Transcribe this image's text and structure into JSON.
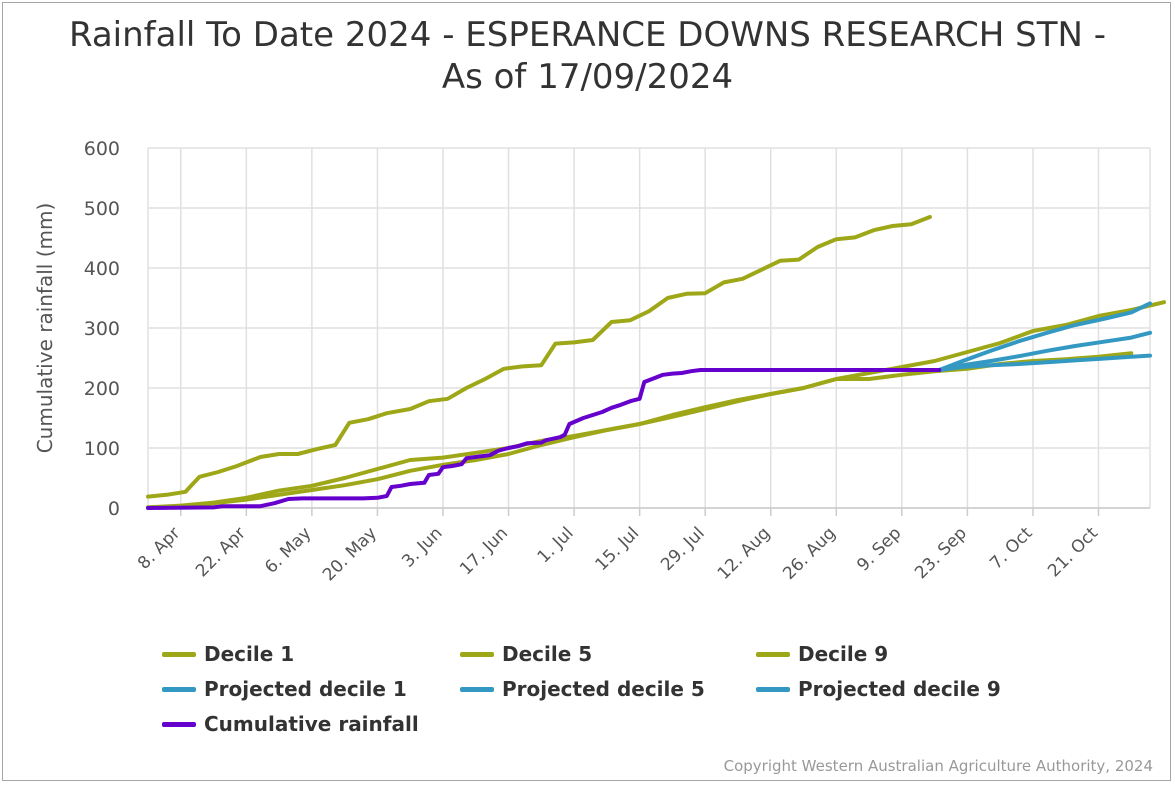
{
  "chart_data": {
    "type": "line",
    "title_line1": "Rainfall To Date 2024 - ESPERANCE DOWNS RESEARCH STN -",
    "title_line2": "As of 17/09/2024",
    "ylabel": "Cumulative rainfall (mm)",
    "xlabel": "",
    "ylim": [
      0,
      600
    ],
    "yticks": [
      "0",
      "100",
      "200",
      "300",
      "400",
      "500",
      "600"
    ],
    "x_start": "1 Apr",
    "x_end": "31 Oct",
    "grid": true,
    "legend_position": "bottom",
    "xticks": [
      {
        "label": "8. Apr",
        "day": 7
      },
      {
        "label": "22. Apr",
        "day": 21
      },
      {
        "label": "6. May",
        "day": 35
      },
      {
        "label": "20. May",
        "day": 49
      },
      {
        "label": "3. Jun",
        "day": 63
      },
      {
        "label": "17. Jun",
        "day": 77
      },
      {
        "label": "1. Jul",
        "day": 91
      },
      {
        "label": "15. Jul",
        "day": 105
      },
      {
        "label": "29. Jul",
        "day": 119
      },
      {
        "label": "12. Aug",
        "day": 133
      },
      {
        "label": "26. Aug",
        "day": 147
      },
      {
        "label": "9. Sep",
        "day": 161
      },
      {
        "label": "23. Sep",
        "day": 175
      },
      {
        "label": "7. Oct",
        "day": 189
      },
      {
        "label": "21. Oct",
        "day": 203
      }
    ],
    "series": [
      {
        "name": "Decile 1",
        "color": "#9ea718",
        "step": false,
        "points": [
          [
            0,
            1
          ],
          [
            7,
            3
          ],
          [
            14,
            8
          ],
          [
            21,
            14
          ],
          [
            28,
            22
          ],
          [
            35,
            30
          ],
          [
            42,
            38
          ],
          [
            49,
            48
          ],
          [
            56,
            62
          ],
          [
            63,
            72
          ],
          [
            70,
            80
          ],
          [
            77,
            90
          ],
          [
            84,
            105
          ],
          [
            91,
            118
          ],
          [
            98,
            130
          ],
          [
            105,
            140
          ],
          [
            112,
            152
          ],
          [
            119,
            165
          ],
          [
            126,
            178
          ],
          [
            133,
            190
          ],
          [
            140,
            200
          ],
          [
            147,
            215
          ],
          [
            154,
            215
          ],
          [
            161,
            222
          ],
          [
            168,
            228
          ],
          [
            175,
            232
          ],
          [
            182,
            240
          ],
          [
            189,
            245
          ],
          [
            196,
            248
          ],
          [
            203,
            252
          ],
          [
            210,
            258
          ]
        ]
      },
      {
        "name": "Decile 5",
        "color": "#9ea718",
        "step": false,
        "points": [
          [
            0,
            1
          ],
          [
            7,
            4
          ],
          [
            14,
            9
          ],
          [
            21,
            17
          ],
          [
            28,
            29
          ],
          [
            35,
            37
          ],
          [
            42,
            50
          ],
          [
            49,
            65
          ],
          [
            56,
            80
          ],
          [
            63,
            84
          ],
          [
            70,
            92
          ],
          [
            77,
            100
          ],
          [
            84,
            112
          ],
          [
            91,
            120
          ],
          [
            98,
            130
          ],
          [
            105,
            140
          ],
          [
            112,
            155
          ],
          [
            119,
            168
          ],
          [
            126,
            180
          ],
          [
            133,
            190
          ],
          [
            140,
            200
          ],
          [
            147,
            215
          ],
          [
            154,
            225
          ],
          [
            161,
            235
          ],
          [
            168,
            245
          ],
          [
            175,
            260
          ],
          [
            182,
            275
          ],
          [
            189,
            295
          ],
          [
            196,
            305
          ],
          [
            203,
            320
          ],
          [
            210,
            330
          ],
          [
            217,
            343
          ]
        ]
      },
      {
        "name": "Decile 9",
        "color": "#9ea718",
        "step": false,
        "points": [
          [
            0,
            19
          ],
          [
            4,
            22
          ],
          [
            8,
            27
          ],
          [
            11,
            52
          ],
          [
            15,
            60
          ],
          [
            19,
            70
          ],
          [
            24,
            85
          ],
          [
            28,
            90
          ],
          [
            32,
            90
          ],
          [
            36,
            98
          ],
          [
            40,
            105
          ],
          [
            43,
            142
          ],
          [
            47,
            148
          ],
          [
            51,
            158
          ],
          [
            56,
            165
          ],
          [
            60,
            178
          ],
          [
            64,
            182
          ],
          [
            68,
            200
          ],
          [
            72,
            215
          ],
          [
            76,
            232
          ],
          [
            80,
            236
          ],
          [
            84,
            238
          ],
          [
            87,
            274
          ],
          [
            91,
            276
          ],
          [
            95,
            280
          ],
          [
            99,
            310
          ],
          [
            103,
            313
          ],
          [
            107,
            328
          ],
          [
            111,
            350
          ],
          [
            115,
            357
          ],
          [
            119,
            358
          ],
          [
            123,
            376
          ],
          [
            127,
            382
          ],
          [
            131,
            397
          ],
          [
            135,
            412
          ],
          [
            139,
            414
          ],
          [
            143,
            435
          ],
          [
            147,
            448
          ],
          [
            151,
            451
          ],
          [
            155,
            463
          ],
          [
            159,
            470
          ],
          [
            163,
            473
          ],
          [
            167,
            485
          ]
        ]
      },
      {
        "name": "Projected decile 1",
        "color": "#3399c3",
        "step": false,
        "points": [
          [
            169,
            230
          ],
          [
            174,
            235
          ],
          [
            180,
            238
          ],
          [
            186,
            240
          ],
          [
            192,
            243
          ],
          [
            198,
            246
          ],
          [
            204,
            249
          ],
          [
            210,
            252
          ],
          [
            214,
            254
          ]
        ]
      },
      {
        "name": "Projected decile 5",
        "color": "#3399c3",
        "step": false,
        "points": [
          [
            169,
            230
          ],
          [
            174,
            238
          ],
          [
            180,
            245
          ],
          [
            186,
            253
          ],
          [
            192,
            262
          ],
          [
            198,
            270
          ],
          [
            204,
            277
          ],
          [
            210,
            284
          ],
          [
            214,
            292
          ]
        ]
      },
      {
        "name": "Projected decile 9",
        "color": "#3399c3",
        "step": false,
        "points": [
          [
            169,
            230
          ],
          [
            174,
            245
          ],
          [
            180,
            262
          ],
          [
            186,
            278
          ],
          [
            192,
            292
          ],
          [
            198,
            305
          ],
          [
            204,
            315
          ],
          [
            210,
            326
          ],
          [
            214,
            341
          ]
        ]
      },
      {
        "name": "Cumulative rainfall",
        "color": "#6600cc",
        "step": true,
        "points": [
          [
            0,
            0
          ],
          [
            14,
            1
          ],
          [
            16,
            3
          ],
          [
            24,
            3
          ],
          [
            27,
            8
          ],
          [
            30,
            15
          ],
          [
            33,
            16
          ],
          [
            40,
            16
          ],
          [
            46,
            16
          ],
          [
            49,
            17
          ],
          [
            51,
            20
          ],
          [
            52,
            35
          ],
          [
            54,
            37
          ],
          [
            56,
            40
          ],
          [
            59,
            42
          ],
          [
            60,
            55
          ],
          [
            62,
            57
          ],
          [
            63,
            68
          ],
          [
            65,
            70
          ],
          [
            67,
            73
          ],
          [
            68,
            83
          ],
          [
            71,
            86
          ],
          [
            73,
            88
          ],
          [
            75,
            96
          ],
          [
            77,
            100
          ],
          [
            79,
            103
          ],
          [
            81,
            108
          ],
          [
            84,
            109
          ],
          [
            85,
            113
          ],
          [
            88,
            118
          ],
          [
            89,
            122
          ],
          [
            90,
            140
          ],
          [
            93,
            150
          ],
          [
            95,
            155
          ],
          [
            97,
            160
          ],
          [
            99,
            167
          ],
          [
            101,
            172
          ],
          [
            103,
            178
          ],
          [
            105,
            182
          ],
          [
            106,
            210
          ],
          [
            108,
            216
          ],
          [
            110,
            222
          ],
          [
            112,
            224
          ],
          [
            114,
            225
          ],
          [
            116,
            228
          ],
          [
            118,
            230
          ],
          [
            120,
            230
          ],
          [
            169,
            230
          ]
        ]
      }
    ]
  },
  "copyright": "Copyright Western Australian Agriculture Authority, 2024"
}
